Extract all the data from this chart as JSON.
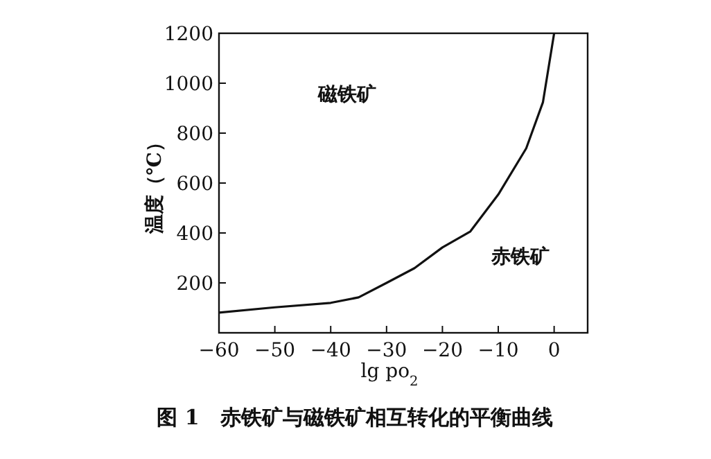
{
  "chart_data": {
    "type": "line",
    "title": "图 1　赤铁矿与磁铁矿相互转化的平衡曲线",
    "xlabel": "lg po$_{2}$",
    "ylabel": "温度（℃）",
    "annotations": [
      "磁铁矿",
      "赤铁矿"
    ],
    "x": [
      -60,
      -50,
      -40,
      -35,
      -30,
      -25,
      -20,
      -15,
      -10,
      -5,
      -2,
      0
    ],
    "series": [
      {
        "color": "#111111",
        "values": [
          81,
          102,
          120,
          142,
          200,
          259,
          342,
          406,
          554,
          739,
          924,
          1200
        ]
      }
    ],
    "xlim": [
      -60,
      6
    ],
    "ylim": [
      0,
      1200
    ],
    "xticks": [
      -60,
      -50,
      -40,
      -30,
      -20,
      -10,
      0
    ],
    "yticks": [
      200,
      400,
      600,
      800,
      1000,
      1200
    ],
    "grid": false,
    "marker": "none",
    "line_style": "solid"
  }
}
